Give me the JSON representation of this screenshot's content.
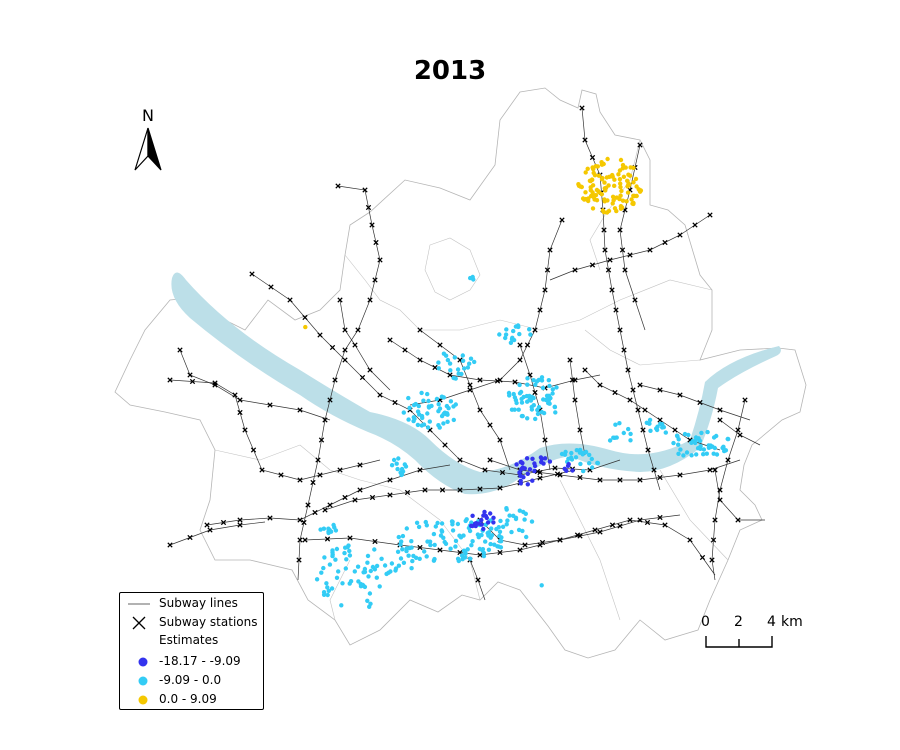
{
  "title": "2013",
  "north_label": "N",
  "legend": {
    "subway_lines": "Subway lines",
    "subway_stations": "Subway stations",
    "heading": "Estimates",
    "classes": [
      {
        "label": "-18.17 - -9.09",
        "color": "#3333ee"
      },
      {
        "label": "-9.09 - 0.0",
        "color": "#33ccf5"
      },
      {
        "label": "0.0 - 9.09",
        "color": "#f5c800"
      }
    ]
  },
  "scale": {
    "ticks": [
      "0",
      "2",
      "4"
    ],
    "unit": "km"
  },
  "colors": {
    "river": "#bcdfe8",
    "boundary": "#b5b5b5",
    "lines": "#333333",
    "stations": "#000000"
  }
}
